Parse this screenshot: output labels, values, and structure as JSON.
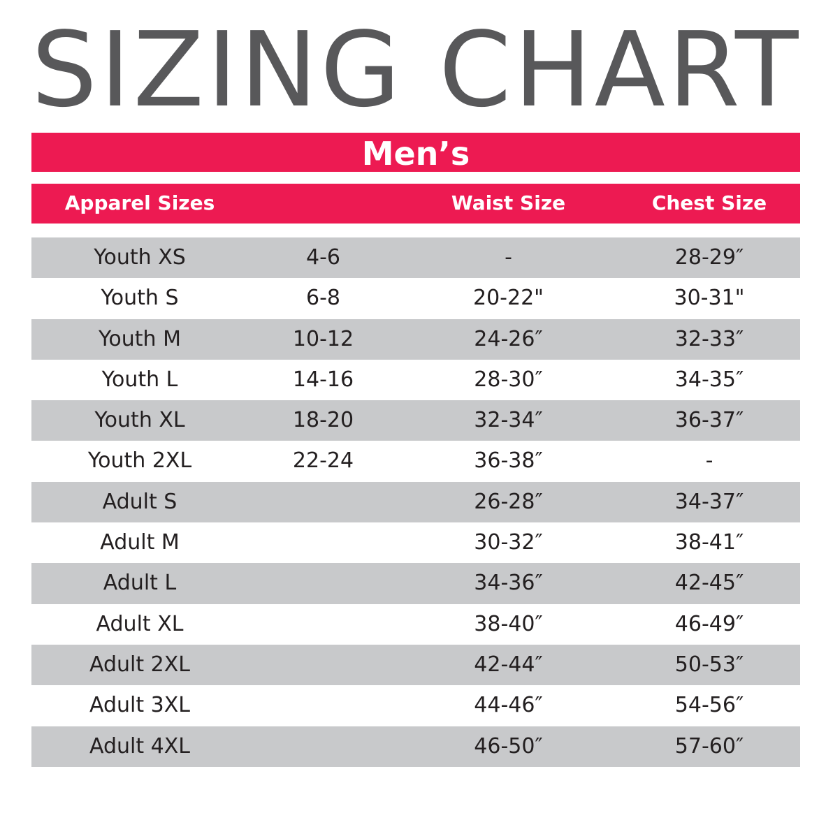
{
  "title": "SIZING CHART",
  "section": "Men’s",
  "columns": {
    "apparel": "Apparel Sizes",
    "numeric": "",
    "waist": "Waist Size",
    "chest": "Chest Size"
  },
  "rows": [
    {
      "size": "Youth XS",
      "range": "4-6",
      "waist": "-",
      "chest": "28-29″"
    },
    {
      "size": "Youth S",
      "range": "6-8",
      "waist": "20-22\"",
      "chest": "30-31\""
    },
    {
      "size": "Youth M",
      "range": "10-12",
      "waist": "24-26″",
      "chest": "32-33″"
    },
    {
      "size": "Youth L",
      "range": "14-16",
      "waist": "28-30″",
      "chest": "34-35″"
    },
    {
      "size": "Youth XL",
      "range": "18-20",
      "waist": "32-34″",
      "chest": "36-37″"
    },
    {
      "size": "Youth 2XL",
      "range": "22-24",
      "waist": "36-38″",
      "chest": "-"
    },
    {
      "size": "Adult S",
      "range": "",
      "waist": "26-28″",
      "chest": "34-37″"
    },
    {
      "size": "Adult M",
      "range": "",
      "waist": "30-32″",
      "chest": "38-41″"
    },
    {
      "size": "Adult L",
      "range": "",
      "waist": "34-36″",
      "chest": "42-45″"
    },
    {
      "size": "Adult XL",
      "range": "",
      "waist": "38-40″",
      "chest": "46-49″"
    },
    {
      "size": "Adult 2XL",
      "range": "",
      "waist": "42-44″",
      "chest": "50-53″"
    },
    {
      "size": "Adult 3XL",
      "range": "",
      "waist": "44-46″",
      "chest": "54-56″"
    },
    {
      "size": "Adult 4XL",
      "range": "",
      "waist": "46-50″",
      "chest": "57-60″"
    }
  ],
  "colors": {
    "accent": "#ed1a52",
    "title": "#58585a",
    "row_shade": "#c8c9cb",
    "text": "#231f20"
  }
}
